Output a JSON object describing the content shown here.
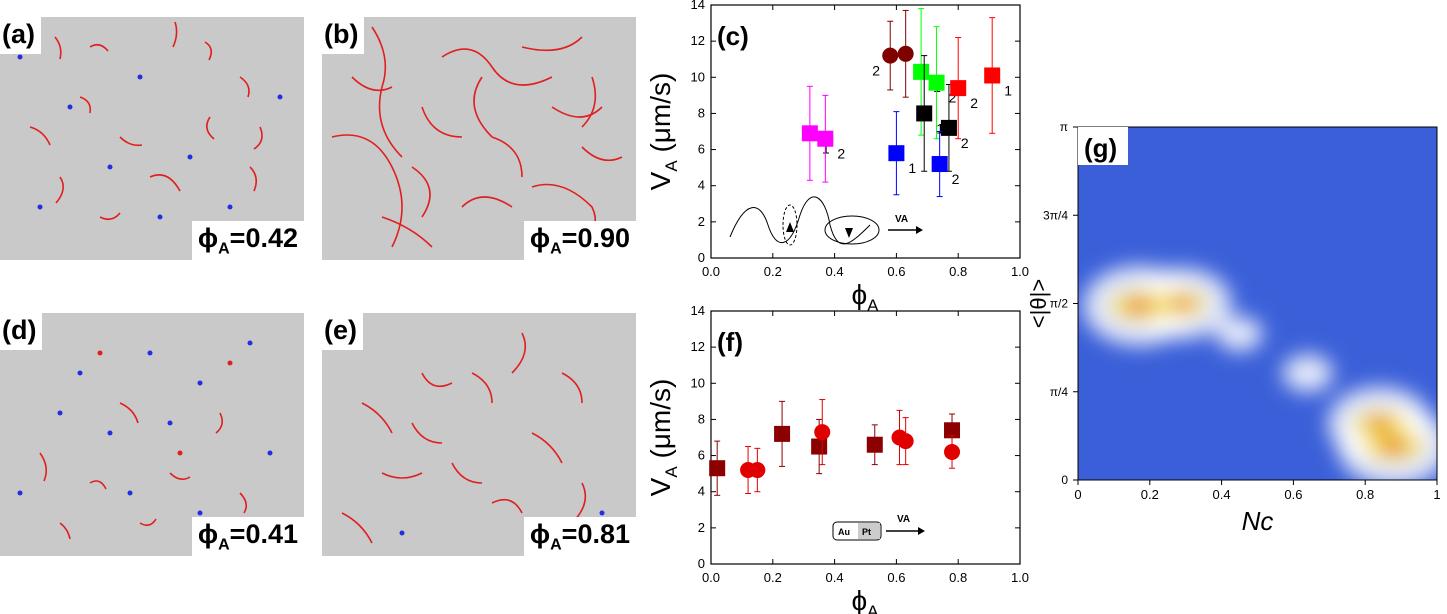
{
  "panels": {
    "a": {
      "label": "(a)",
      "phi_symbol": "ϕ",
      "phi_sub": "A",
      "phi_value": "=0.42"
    },
    "b": {
      "label": "(b)",
      "phi_symbol": "ϕ",
      "phi_sub": "A",
      "phi_value": "=0.90"
    },
    "d": {
      "label": "(d)",
      "phi_symbol": "ϕ",
      "phi_sub": "A",
      "phi_value": "=0.41"
    },
    "e": {
      "label": "(e)",
      "phi_symbol": "ϕ",
      "phi_sub": "A",
      "phi_value": "=0.81"
    }
  },
  "chart_data": [
    {
      "id": "c",
      "type": "scatter",
      "panel_label": "(c)",
      "xlabel": "ϕA",
      "ylabel": "VA (μm/s)",
      "xlim": [
        0,
        1.0
      ],
      "ylim": [
        0,
        14
      ],
      "xticks": [
        "0.0",
        "0.2",
        "0.4",
        "0.6",
        "0.8",
        "1.0"
      ],
      "yticks": [
        "0",
        "2",
        "4",
        "6",
        "8",
        "10",
        "12",
        "14"
      ],
      "inset_label": "VA",
      "points": [
        {
          "x": 0.32,
          "y": 6.9,
          "err": 2.6,
          "marker": "square",
          "color": "#ff00ff",
          "label": "1"
        },
        {
          "x": 0.37,
          "y": 6.6,
          "err": 2.4,
          "marker": "square",
          "color": "#ff00ff",
          "label": "2"
        },
        {
          "x": 0.58,
          "y": 11.2,
          "err": 1.9,
          "marker": "circle",
          "color": "#800000",
          "label": "2"
        },
        {
          "x": 0.63,
          "y": 11.3,
          "err": 2.4,
          "marker": "circle",
          "color": "#800000",
          "label": ""
        },
        {
          "x": 0.6,
          "y": 5.8,
          "err": 2.3,
          "marker": "square",
          "color": "#0000ff",
          "label": "1"
        },
        {
          "x": 0.68,
          "y": 10.3,
          "err": 3.5,
          "marker": "square",
          "color": "#00ff00",
          "label": "1"
        },
        {
          "x": 0.73,
          "y": 9.7,
          "err": 3.1,
          "marker": "square",
          "color": "#00ff00",
          "label": "2"
        },
        {
          "x": 0.69,
          "y": 8.0,
          "err": 3.2,
          "marker": "square",
          "color": "#000000",
          "label": "1"
        },
        {
          "x": 0.77,
          "y": 7.2,
          "err": 2.4,
          "marker": "square",
          "color": "#000000",
          "label": "2"
        },
        {
          "x": 0.74,
          "y": 5.2,
          "err": 1.8,
          "marker": "square",
          "color": "#0000ff",
          "label": "2"
        },
        {
          "x": 0.8,
          "y": 9.4,
          "err": 2.8,
          "marker": "square",
          "color": "#ff0000",
          "label": "2"
        },
        {
          "x": 0.91,
          "y": 10.1,
          "err": 3.2,
          "marker": "square",
          "color": "#ff0000",
          "label": "1"
        }
      ]
    },
    {
      "id": "f",
      "type": "scatter",
      "panel_label": "(f)",
      "xlabel": "ϕA",
      "ylabel": "VA (μm/s)",
      "xlim": [
        0,
        1.0
      ],
      "ylim": [
        0,
        14
      ],
      "xticks": [
        "0.0",
        "0.2",
        "0.4",
        "0.6",
        "0.8",
        "1.0"
      ],
      "yticks": [
        "0",
        "2",
        "4",
        "6",
        "8",
        "10",
        "12",
        "14"
      ],
      "inset_labels": [
        "Au",
        "Pt",
        "VA"
      ],
      "points": [
        {
          "x": 0.02,
          "y": 5.3,
          "err": 1.5,
          "marker": "square",
          "color": "#8b0000"
        },
        {
          "x": 0.12,
          "y": 5.2,
          "err": 1.3,
          "marker": "circle",
          "color": "#e00000"
        },
        {
          "x": 0.15,
          "y": 5.2,
          "err": 1.2,
          "marker": "circle",
          "color": "#e00000"
        },
        {
          "x": 0.23,
          "y": 7.2,
          "err": 1.8,
          "marker": "square",
          "color": "#8b0000"
        },
        {
          "x": 0.35,
          "y": 6.5,
          "err": 1.5,
          "marker": "square",
          "color": "#8b0000"
        },
        {
          "x": 0.36,
          "y": 7.3,
          "err": 1.8,
          "marker": "circle",
          "color": "#e00000"
        },
        {
          "x": 0.53,
          "y": 6.6,
          "err": 1.1,
          "marker": "square",
          "color": "#8b0000"
        },
        {
          "x": 0.61,
          "y": 7.0,
          "err": 1.5,
          "marker": "circle",
          "color": "#e00000"
        },
        {
          "x": 0.63,
          "y": 6.8,
          "err": 1.3,
          "marker": "circle",
          "color": "#e00000"
        },
        {
          "x": 0.78,
          "y": 7.4,
          "err": 0.9,
          "marker": "square",
          "color": "#8b0000"
        },
        {
          "x": 0.78,
          "y": 6.2,
          "err": 0.9,
          "marker": "circle",
          "color": "#e00000"
        }
      ]
    },
    {
      "id": "g",
      "type": "heatmap",
      "panel_label": "(g)",
      "xlabel": "Nc",
      "ylabel": "<|θ|>",
      "xlim": [
        0,
        1
      ],
      "ylim": [
        0,
        3.1416
      ],
      "xticks": [
        "0",
        "0.2",
        "0.4",
        "0.6",
        "0.8",
        "1"
      ],
      "yticks": [
        "0",
        "π/4",
        "π/2",
        "3π/4",
        "π"
      ],
      "hotspots": [
        {
          "x": 0.17,
          "y": 1.55,
          "intensity": 1.0
        },
        {
          "x": 0.29,
          "y": 1.57,
          "intensity": 0.85
        },
        {
          "x": 0.45,
          "y": 1.3,
          "intensity": 0.25
        },
        {
          "x": 0.64,
          "y": 0.95,
          "intensity": 0.3
        },
        {
          "x": 0.84,
          "y": 0.5,
          "intensity": 0.9
        },
        {
          "x": 0.88,
          "y": 0.3,
          "intensity": 1.0
        }
      ]
    }
  ]
}
